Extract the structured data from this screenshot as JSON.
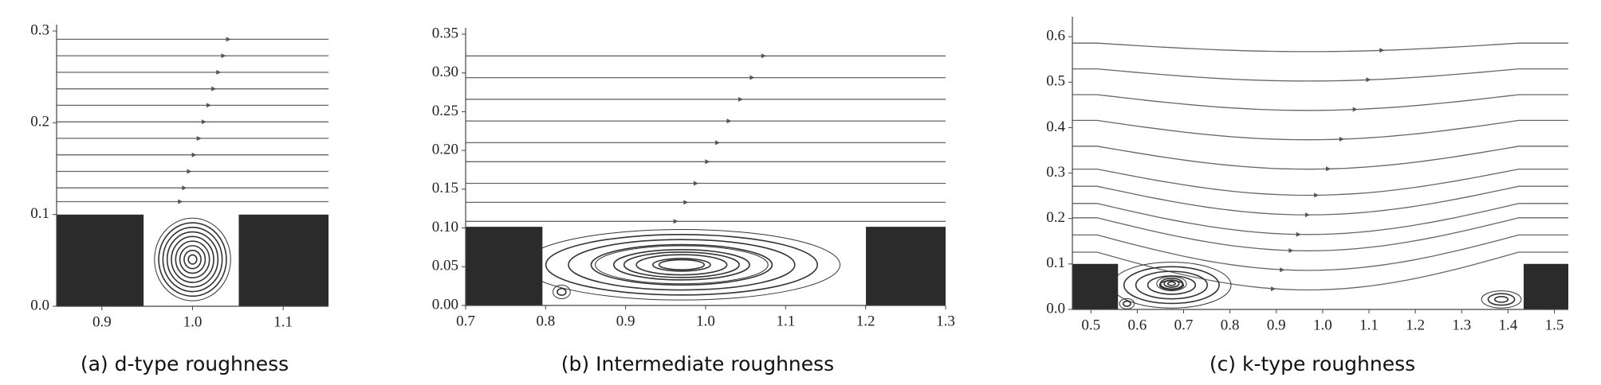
{
  "chart_data": [
    {
      "type": "streamline",
      "caption": "(a) d-type roughness",
      "xlim": [
        0.85,
        1.15
      ],
      "ylim": [
        0,
        0.3
      ],
      "xticks": [
        0.9,
        {
          "value": 1.0,
          "label": "1.0"
        },
        1.1
      ],
      "yticks": [
        {
          "value": 0,
          "label": "0.0"
        },
        0.1,
        0.2,
        0.3
      ]
    },
    {
      "type": "streamline",
      "caption": "(b) Intermediate roughness",
      "xlim": [
        0.7,
        1.3
      ],
      "ylim": [
        0,
        0.35
      ],
      "xticks": [
        0.7,
        0.8,
        0.9,
        {
          "value": 1.0,
          "label": "1.0"
        },
        1.1,
        1.2,
        1.3
      ],
      "yticks": [
        {
          "value": 0,
          "label": "0.00"
        },
        0.05,
        {
          "value": 0.1,
          "label": "0.10"
        },
        0.15,
        {
          "value": 0.2,
          "label": "0.20"
        },
        0.25,
        {
          "value": 0.3,
          "label": "0.30"
        },
        0.35
      ]
    },
    {
      "type": "streamline",
      "caption": "(c) k-type roughness",
      "xlim": [
        0.46,
        1.53
      ],
      "ylim": [
        0,
        0.63
      ],
      "xticks": [
        0.5,
        0.6,
        0.7,
        0.8,
        0.9,
        {
          "value": 1.0,
          "label": "1.0"
        },
        1.1,
        1.2,
        1.3,
        1.4,
        1.5
      ],
      "yticks": [
        {
          "value": 0,
          "label": "0.0"
        },
        0.1,
        0.2,
        0.3,
        0.4,
        0.5,
        0.6
      ]
    }
  ]
}
